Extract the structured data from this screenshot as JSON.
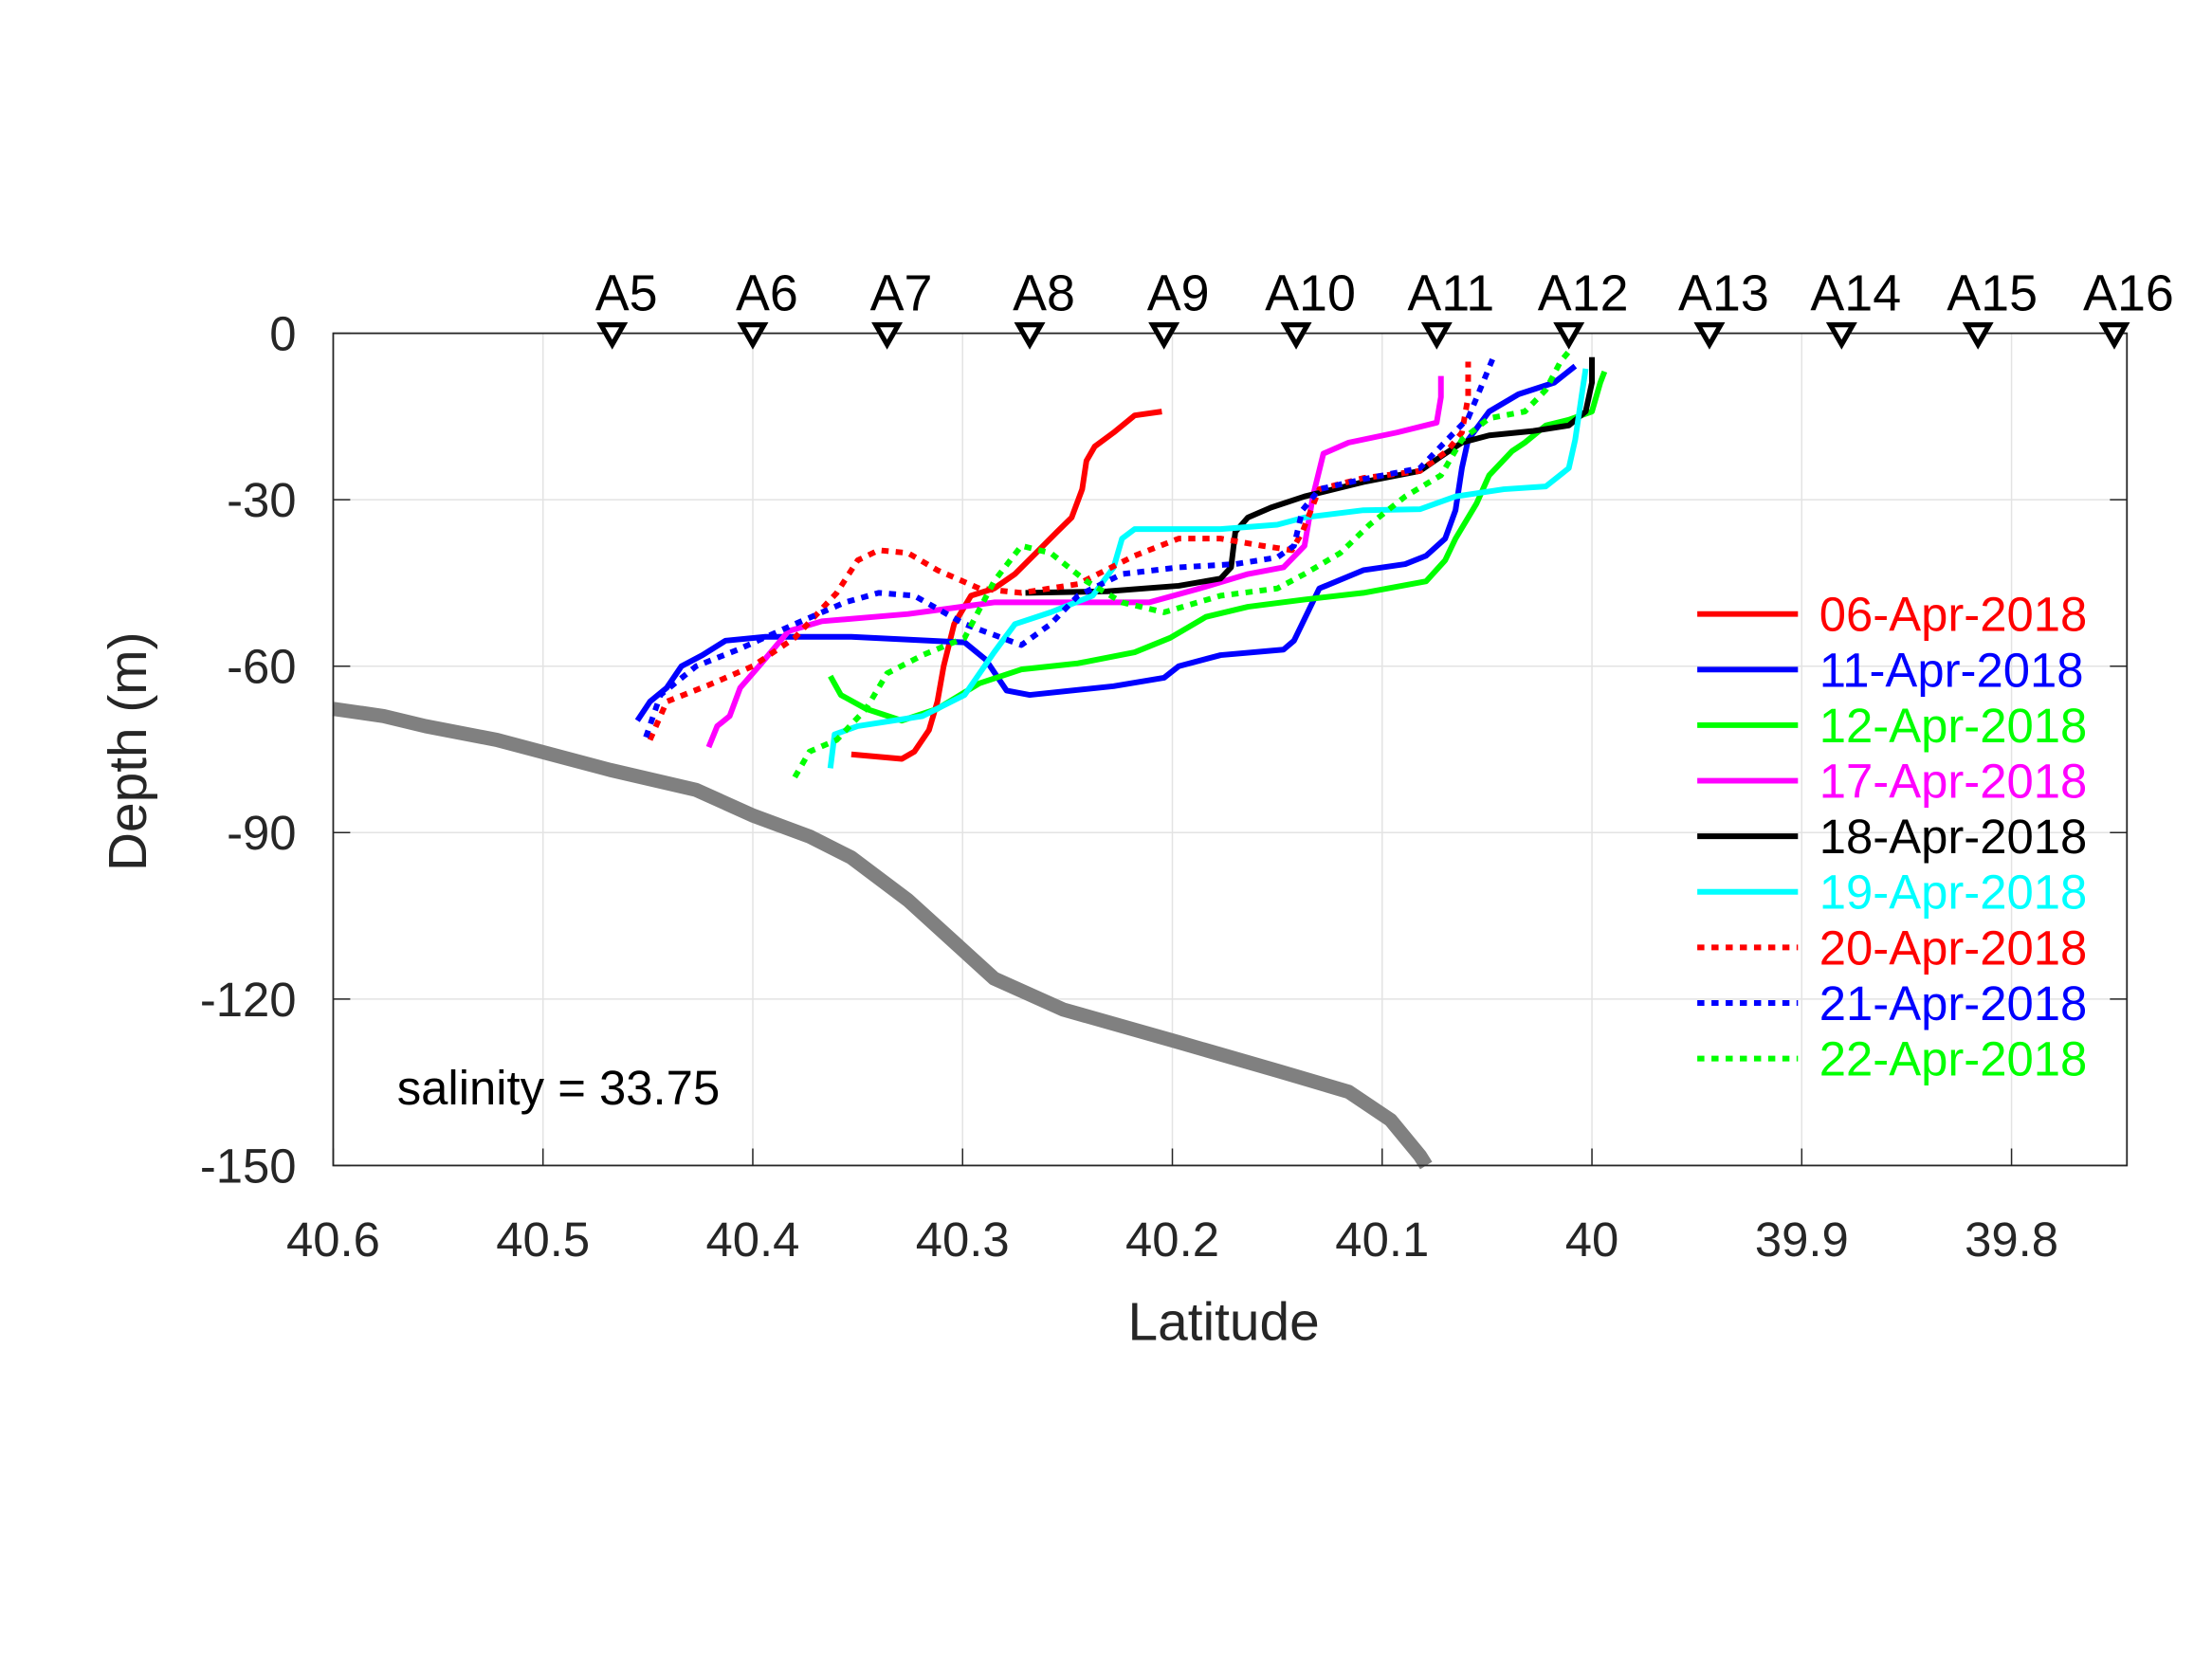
{
  "chart_data": {
    "type": "line",
    "xlabel": "Latitude",
    "ylabel": "Depth (m)",
    "xlim": [
      40.6,
      39.745
    ],
    "x_reversed": true,
    "ylim": [
      -150,
      0
    ],
    "grid": true,
    "legend_position": "right",
    "xticks": [
      40.6,
      40.5,
      40.4,
      40.3,
      40.2,
      40.1,
      40,
      39.9,
      39.8
    ],
    "xtick_labels": [
      "40.6",
      "40.5",
      "40.4",
      "40.3",
      "40.2",
      "40.1",
      "40",
      "39.9",
      "39.8"
    ],
    "yticks": [
      0,
      -30,
      -60,
      -90,
      -120,
      -150
    ],
    "ytick_labels": [
      "0",
      "-30",
      "-60",
      "-90",
      "-120",
      "-150"
    ],
    "annotation": "salinity = 33.75",
    "stations": [
      {
        "name": "A5",
        "lat": 40.467
      },
      {
        "name": "A6",
        "lat": 40.4
      },
      {
        "name": "A7",
        "lat": 40.336
      },
      {
        "name": "A8",
        "lat": 40.268
      },
      {
        "name": "A9",
        "lat": 40.204
      },
      {
        "name": "A10",
        "lat": 40.141
      },
      {
        "name": "A11",
        "lat": 40.074
      },
      {
        "name": "A12",
        "lat": 40.011
      },
      {
        "name": "A13",
        "lat": 39.944
      },
      {
        "name": "A14",
        "lat": 39.881
      },
      {
        "name": "A15",
        "lat": 39.816
      },
      {
        "name": "A16",
        "lat": 39.751
      }
    ],
    "bathymetry": {
      "color": "#808080",
      "lat": [
        40.6,
        40.576,
        40.556,
        40.522,
        40.468,
        40.427,
        40.4,
        40.373,
        40.353,
        40.326,
        40.285,
        40.252,
        40.197,
        40.15,
        40.116,
        40.096,
        40.082,
        40.079
      ],
      "depth": [
        -67.7,
        -69,
        -70.8,
        -73.3,
        -78.7,
        -82.3,
        -86.9,
        -90.7,
        -94.5,
        -102.2,
        -116.3,
        -121.9,
        -127.8,
        -132.9,
        -136.7,
        -141.8,
        -148.2,
        -150
      ]
    },
    "series": [
      {
        "name": "06-Apr-2018",
        "color": "#ff0000",
        "style": "solid",
        "lat": [
          40.353,
          40.329,
          40.323,
          40.316,
          40.312,
          40.309,
          40.304,
          40.296,
          40.285,
          40.275,
          40.265,
          40.255,
          40.248,
          40.243,
          40.241,
          40.237,
          40.228,
          40.218,
          40.205
        ],
        "depth": [
          -75.9,
          -76.7,
          -75.4,
          -71.5,
          -66.4,
          -60.0,
          -52.4,
          -47.3,
          -46.0,
          -43.4,
          -39.6,
          -35.8,
          -33.2,
          -28.1,
          -23.0,
          -20.4,
          -17.9,
          -14.8,
          -14.1
        ]
      },
      {
        "name": "11-Apr-2018",
        "color": "#0000ff",
        "style": "solid",
        "lat": [
          40.455,
          40.449,
          40.441,
          40.434,
          40.424,
          40.413,
          40.394,
          40.353,
          40.299,
          40.289,
          40.279,
          40.268,
          40.228,
          40.204,
          40.197,
          40.177,
          40.147,
          40.142,
          40.13,
          40.109,
          40.089,
          40.079,
          40.07,
          40.065,
          40.062,
          40.059,
          40.049,
          40.035,
          40.018,
          40.008
        ],
        "depth": [
          -69.8,
          -66.4,
          -63.9,
          -60.0,
          -58.0,
          -55.4,
          -54.7,
          -54.7,
          -55.7,
          -58.8,
          -64.4,
          -65.2,
          -63.6,
          -62.1,
          -60.0,
          -58.0,
          -57.0,
          -55.4,
          -46.0,
          -42.7,
          -41.6,
          -40.1,
          -37.0,
          -31.9,
          -24.3,
          -19.2,
          -14.1,
          -11.0,
          -8.9,
          -5.9
        ]
      },
      {
        "name": "12-Apr-2018",
        "color": "#00ff00",
        "style": "solid",
        "lat": [
          40.363,
          40.358,
          40.346,
          40.329,
          40.312,
          40.292,
          40.272,
          40.245,
          40.218,
          40.201,
          40.184,
          40.164,
          40.137,
          40.109,
          40.079,
          40.07,
          40.065,
          40.055,
          40.049,
          40.038,
          40.032,
          40.022,
          40.011,
          40.0,
          39.996,
          39.994
        ],
        "depth": [
          -61.8,
          -65.2,
          -67.7,
          -69.8,
          -67.7,
          -63.1,
          -60.6,
          -59.5,
          -57.5,
          -54.9,
          -51.1,
          -49.3,
          -48.0,
          -46.8,
          -44.7,
          -40.9,
          -37.0,
          -30.7,
          -25.6,
          -21.2,
          -19.7,
          -16.6,
          -15.6,
          -14.1,
          -8.9,
          -6.9
        ]
      },
      {
        "name": "17-Apr-2018",
        "color": "#ff00ff",
        "style": "solid",
        "lat": [
          40.421,
          40.417,
          40.411,
          40.406,
          40.397,
          40.383,
          40.367,
          40.326,
          40.285,
          40.245,
          40.211,
          40.187,
          40.164,
          40.147,
          40.137,
          40.133,
          40.128,
          40.116,
          40.093,
          40.074,
          40.072,
          40.072
        ],
        "depth": [
          -74.6,
          -70.8,
          -69.0,
          -63.9,
          -60.0,
          -53.7,
          -51.9,
          -50.6,
          -48.5,
          -48.5,
          -48.5,
          -46.0,
          -43.4,
          -42.2,
          -38.3,
          -29.4,
          -21.7,
          -19.7,
          -17.9,
          -16.1,
          -11.5,
          -7.7
        ]
      },
      {
        "name": "18-Apr-2018",
        "color": "#000000",
        "style": "solid",
        "lat": [
          40.27,
          40.231,
          40.197,
          40.177,
          40.172,
          40.17,
          40.164,
          40.153,
          40.137,
          40.109,
          40.082,
          40.072,
          40.062,
          40.049,
          40.028,
          40.011,
          40.003,
          40.0,
          40.0
        ],
        "depth": [
          -46.8,
          -46.5,
          -45.5,
          -44.2,
          -42.2,
          -35.8,
          -33.2,
          -31.4,
          -29.4,
          -26.8,
          -24.8,
          -22.2,
          -19.7,
          -18.4,
          -17.6,
          -16.6,
          -14.1,
          -8.9,
          -4.3
        ]
      },
      {
        "name": "19-Apr-2018",
        "color": "#00ffff",
        "style": "solid",
        "lat": [
          40.363,
          40.361,
          40.35,
          40.319,
          40.299,
          40.285,
          40.275,
          40.258,
          40.238,
          40.228,
          40.224,
          40.218,
          40.177,
          40.15,
          40.137,
          40.109,
          40.082,
          40.065,
          40.042,
          40.022,
          40.011,
          40.008,
          40.005,
          40.003
        ],
        "depth": [
          -78.4,
          -72.3,
          -70.8,
          -69.0,
          -65.2,
          -57.5,
          -52.4,
          -50.3,
          -47.3,
          -42.2,
          -37.0,
          -35.3,
          -35.3,
          -34.5,
          -33.2,
          -31.9,
          -31.7,
          -29.4,
          -28.1,
          -27.6,
          -24.3,
          -19.2,
          -11.5,
          -6.4
        ]
      },
      {
        "name": "20-Apr-2018",
        "color": "#ff0000",
        "style": "dotted",
        "lat": [
          40.449,
          40.441,
          40.421,
          40.4,
          40.38,
          40.36,
          40.35,
          40.34,
          40.326,
          40.312,
          40.292,
          40.272,
          40.245,
          40.218,
          40.197,
          40.177,
          40.157,
          40.143,
          40.138,
          40.13,
          40.109,
          40.082,
          40.069,
          40.062,
          40.059,
          40.059
        ],
        "depth": [
          -73.3,
          -66.4,
          -63.4,
          -60.0,
          -54.9,
          -46.8,
          -40.9,
          -39.1,
          -39.6,
          -42.7,
          -46.0,
          -46.8,
          -45.2,
          -40.1,
          -37.0,
          -37.0,
          -38.3,
          -39.1,
          -35.8,
          -28.1,
          -26.1,
          -24.8,
          -21.2,
          -17.9,
          -11.5,
          -5.1
        ]
      },
      {
        "name": "21-Apr-2018",
        "color": "#0000ff",
        "style": "dotted",
        "lat": [
          40.451,
          40.444,
          40.427,
          40.407,
          40.38,
          40.356,
          40.34,
          40.323,
          40.299,
          40.272,
          40.258,
          40.245,
          40.224,
          40.197,
          40.17,
          40.15,
          40.142,
          40.138,
          40.13,
          40.109,
          40.082,
          40.069,
          40.059,
          40.052,
          40.047
        ],
        "depth": [
          -72.8,
          -65.2,
          -60.0,
          -57.0,
          -52.4,
          -48.5,
          -46.8,
          -47.3,
          -52.4,
          -56.2,
          -52.4,
          -47.3,
          -43.4,
          -42.2,
          -41.6,
          -40.4,
          -38.3,
          -31.9,
          -28.1,
          -26.3,
          -24.3,
          -19.2,
          -15.3,
          -8.9,
          -4.3
        ]
      },
      {
        "name": "22-Apr-2018",
        "color": "#00ff00",
        "style": "dotted",
        "lat": [
          40.38,
          40.373,
          40.36,
          40.346,
          40.336,
          40.319,
          40.299,
          40.285,
          40.272,
          40.258,
          40.241,
          40.224,
          40.204,
          40.177,
          40.15,
          40.137,
          40.12,
          40.106,
          40.089,
          40.072,
          40.062,
          40.049,
          40.032,
          40.022,
          40.015,
          40.011
        ],
        "depth": [
          -80.0,
          -75.4,
          -73.3,
          -67.7,
          -61.3,
          -58.0,
          -54.9,
          -44.7,
          -38.3,
          -39.6,
          -44.7,
          -48.5,
          -50.3,
          -47.3,
          -46.0,
          -43.4,
          -39.6,
          -34.5,
          -29.4,
          -25.6,
          -19.2,
          -15.3,
          -14.1,
          -10.2,
          -5.1,
          -3.3
        ]
      }
    ]
  }
}
